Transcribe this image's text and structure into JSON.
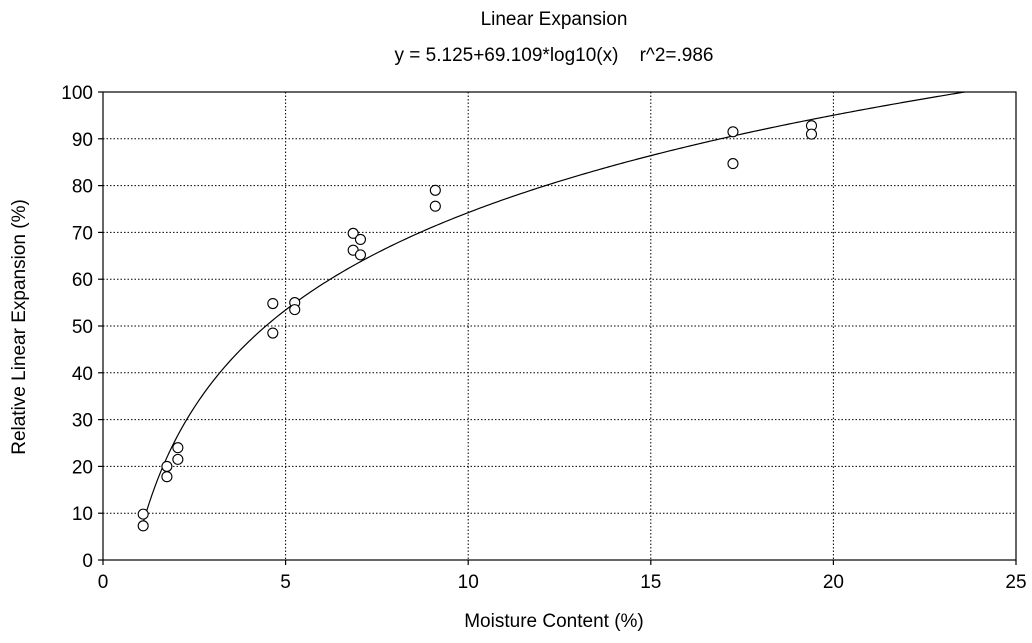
{
  "chart_data": {
    "type": "scatter",
    "title": "Linear Expansion",
    "subtitle": "y = 5.125+69.109*log10(x)    r^2=.986",
    "xlabel": "Moisture Content (%)",
    "ylabel": "Relative Linear Expansion (%)",
    "xlim": [
      0,
      25
    ],
    "ylim": [
      0,
      100
    ],
    "xticks": [
      0,
      5,
      10,
      15,
      20,
      25
    ],
    "yticks": [
      0,
      10,
      20,
      30,
      40,
      50,
      60,
      70,
      80,
      90,
      100
    ],
    "grid": true,
    "fit": {
      "a": 5.125,
      "b": 69.109,
      "form": "log10",
      "x_start": 1.1,
      "x_end": 25
    },
    "points": [
      {
        "x": 1.1,
        "y": 9.8
      },
      {
        "x": 1.1,
        "y": 7.3
      },
      {
        "x": 1.75,
        "y": 20.0
      },
      {
        "x": 1.75,
        "y": 17.8
      },
      {
        "x": 2.05,
        "y": 24.0
      },
      {
        "x": 2.05,
        "y": 21.5
      },
      {
        "x": 4.65,
        "y": 54.8
      },
      {
        "x": 4.65,
        "y": 48.5
      },
      {
        "x": 5.25,
        "y": 55.0
      },
      {
        "x": 5.25,
        "y": 53.5
      },
      {
        "x": 6.85,
        "y": 69.8
      },
      {
        "x": 6.85,
        "y": 66.2
      },
      {
        "x": 7.05,
        "y": 68.5
      },
      {
        "x": 7.05,
        "y": 65.2
      },
      {
        "x": 9.1,
        "y": 79.0
      },
      {
        "x": 9.1,
        "y": 75.6
      },
      {
        "x": 17.25,
        "y": 91.5
      },
      {
        "x": 17.25,
        "y": 84.7
      },
      {
        "x": 19.4,
        "y": 92.8
      },
      {
        "x": 19.4,
        "y": 91.0
      }
    ]
  }
}
